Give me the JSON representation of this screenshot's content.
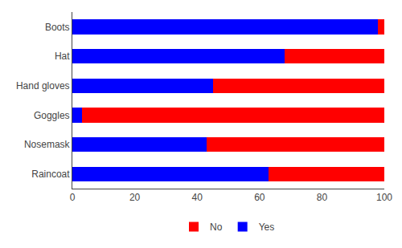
{
  "chart_data": {
    "type": "bar",
    "orientation": "horizontal",
    "stacked": true,
    "categories": [
      "Boots",
      "Hat",
      "Hand gloves",
      "Goggles",
      "Nosemask",
      "Raincoat"
    ],
    "series": [
      {
        "name": "Yes",
        "color": "#0000FF",
        "values": [
          98,
          68,
          45,
          3,
          43,
          63
        ]
      },
      {
        "name": "No",
        "color": "#FF0000",
        "values": [
          2,
          32,
          55,
          97,
          57,
          37
        ]
      }
    ],
    "xlim": [
      0,
      100
    ],
    "xticks": [
      0,
      20,
      40,
      60,
      80,
      100
    ],
    "grid": false,
    "legend": "bottom"
  }
}
